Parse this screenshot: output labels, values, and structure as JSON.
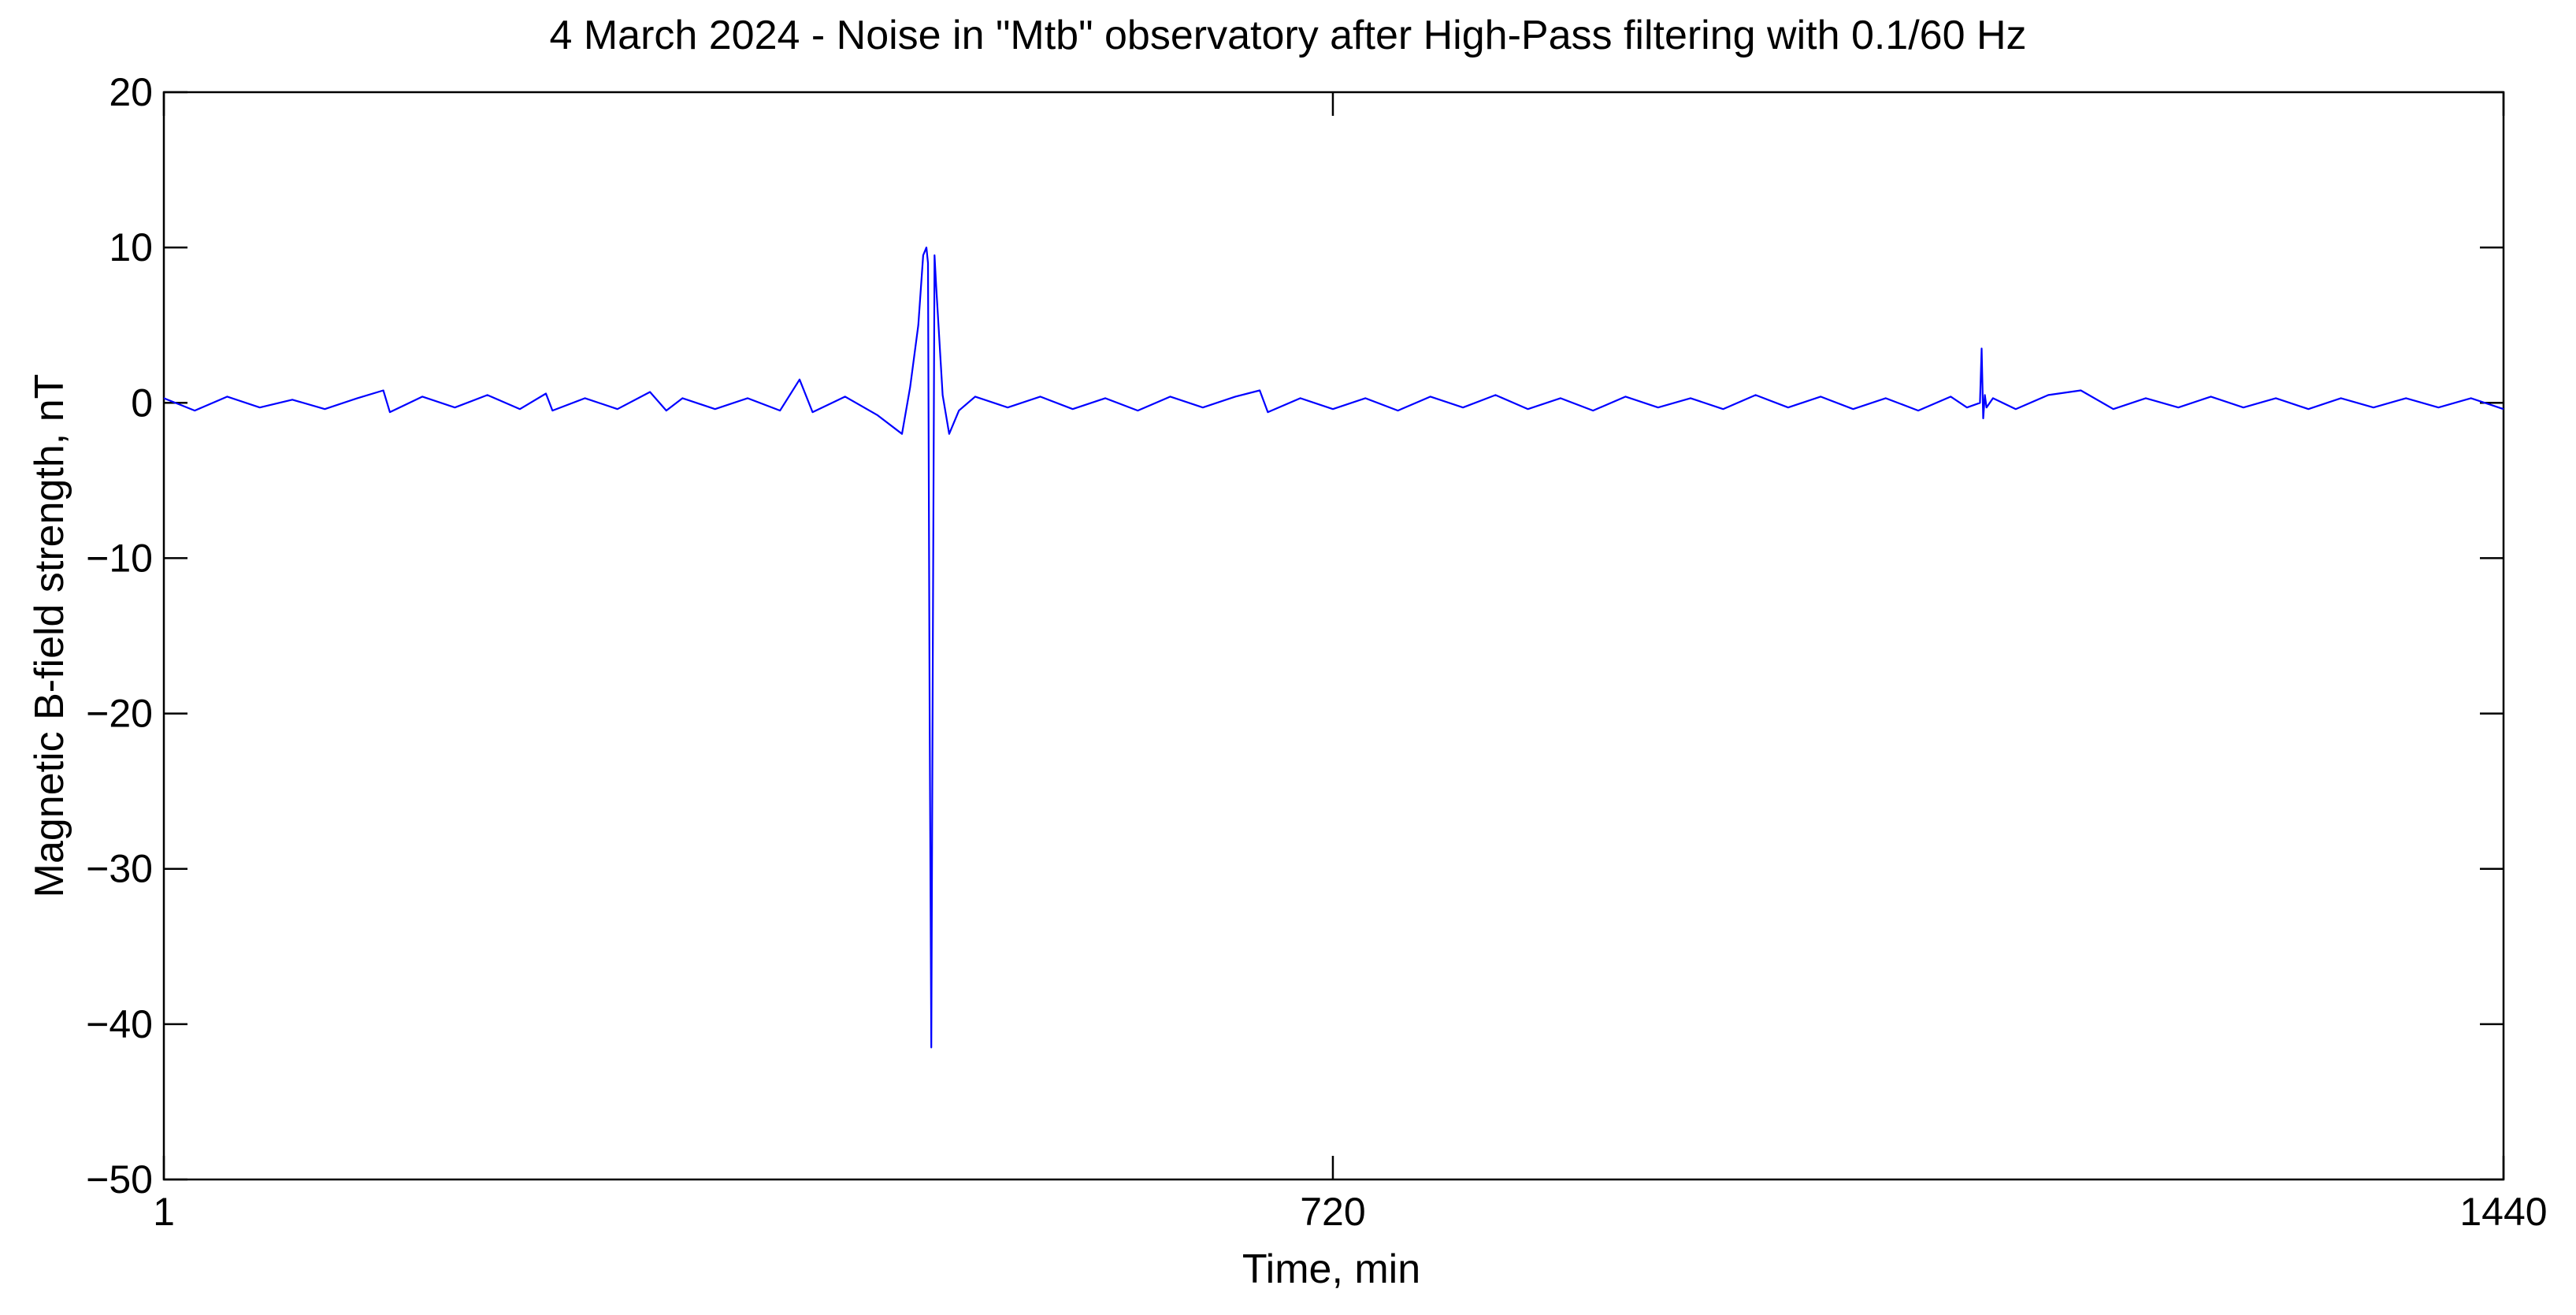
{
  "chart_data": {
    "type": "line",
    "title": "4 March 2024 - Noise in \"Mtb\" observatory after High-Pass filtering with 0.1/60 Hz",
    "xlabel": "Time, min",
    "ylabel": "Magnetic B-field strength, nT",
    "xlim": [
      1,
      1440
    ],
    "ylim": [
      -50,
      20
    ],
    "x_ticks": [
      1,
      720,
      1440
    ],
    "x_tick_labels": [
      "1",
      "720",
      "1440"
    ],
    "y_ticks": [
      20,
      10,
      0,
      -10,
      -20,
      -30,
      -40,
      -50
    ],
    "y_tick_labels": [
      "20",
      "10",
      "0",
      "−10",
      "−20",
      "−30",
      "−40",
      "−50"
    ],
    "grid": false,
    "legend": "none",
    "color": "#0000ff",
    "series": [
      {
        "x": [
          1,
          20,
          40,
          60,
          80,
          100,
          120,
          136,
          140,
          160,
          180,
          200,
          220,
          236,
          240,
          260,
          280,
          300,
          310,
          320,
          340,
          360,
          380,
          392,
          400,
          420,
          440,
          455,
          460,
          465,
          468,
          470,
          471,
          472,
          473,
          474,
          475,
          476,
          478,
          480,
          484,
          490,
          500,
          520,
          540,
          560,
          580,
          600,
          620,
          640,
          660,
          675,
          680,
          700,
          720,
          740,
          760,
          780,
          800,
          820,
          840,
          860,
          880,
          900,
          920,
          940,
          960,
          980,
          1000,
          1020,
          1040,
          1060,
          1080,
          1100,
          1110,
          1118,
          1119,
          1120,
          1121,
          1122,
          1126,
          1140,
          1160,
          1180,
          1200,
          1220,
          1240,
          1260,
          1280,
          1300,
          1320,
          1340,
          1360,
          1380,
          1400,
          1420,
          1440
        ],
        "y": [
          0.3,
          -0.5,
          0.4,
          -0.3,
          0.2,
          -0.4,
          0.3,
          0.8,
          -0.6,
          0.4,
          -0.3,
          0.5,
          -0.4,
          0.6,
          -0.5,
          0.3,
          -0.4,
          0.7,
          -0.5,
          0.3,
          -0.4,
          0.3,
          -0.5,
          1.5,
          -0.6,
          0.4,
          -0.8,
          -2.0,
          1.0,
          5.0,
          9.5,
          10.0,
          9.0,
          -20.0,
          -41.5,
          -15.0,
          9.5,
          7.5,
          4.0,
          0.5,
          -2.0,
          -0.5,
          0.4,
          -0.3,
          0.4,
          -0.4,
          0.3,
          -0.5,
          0.4,
          -0.3,
          0.4,
          0.8,
          -0.6,
          0.3,
          -0.4,
          0.3,
          -0.5,
          0.4,
          -0.3,
          0.5,
          -0.4,
          0.3,
          -0.5,
          0.4,
          -0.3,
          0.3,
          -0.4,
          0.5,
          -0.3,
          0.4,
          -0.4,
          0.3,
          -0.5,
          0.4,
          -0.3,
          0.0,
          3.5,
          -1.0,
          0.5,
          -0.3,
          0.3,
          -0.4,
          0.5,
          0.8,
          -0.4,
          0.3,
          -0.3,
          0.4,
          -0.3,
          0.3,
          -0.4,
          0.3,
          -0.3,
          0.3,
          -0.3,
          0.3,
          -0.4
        ]
      }
    ]
  }
}
